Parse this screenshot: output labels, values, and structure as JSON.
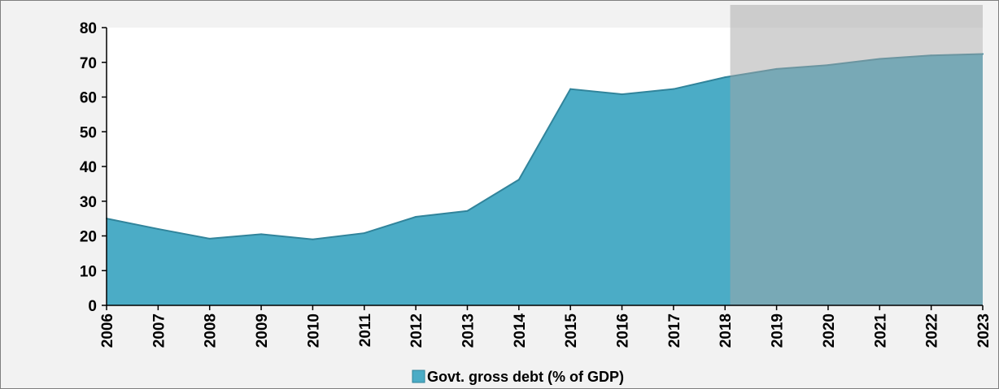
{
  "chart_data": {
    "type": "area",
    "title": "",
    "xlabel": "",
    "ylabel": "",
    "x": [
      "2006",
      "2007",
      "2008",
      "2009",
      "2010",
      "2011",
      "2012",
      "2013",
      "2014",
      "2015",
      "2016",
      "2017",
      "2018",
      "2019",
      "2020",
      "2021",
      "2022",
      "2023"
    ],
    "series": [
      {
        "name": "Govt. gross debt (% of GDP)",
        "values": [
          25,
          22,
          19.2,
          20.5,
          19,
          20.8,
          25.5,
          27.2,
          36.2,
          62.3,
          60.8,
          62.3,
          65.7,
          68.1,
          69.2,
          71,
          72,
          72.4
        ],
        "color": "#4bacc6"
      }
    ],
    "ylim": [
      0,
      80
    ],
    "yticks": [
      0,
      10,
      20,
      30,
      40,
      50,
      60,
      70,
      80
    ],
    "grid": false,
    "legend_position": "bottom",
    "shaded_region": {
      "start_x": 2018.1,
      "end_x": 2023,
      "color": "#a6a6a6"
    },
    "colors": {
      "plot_background": "#ffffff",
      "outer_background": "#f2f2f2",
      "area_edge": "#31849b"
    }
  }
}
